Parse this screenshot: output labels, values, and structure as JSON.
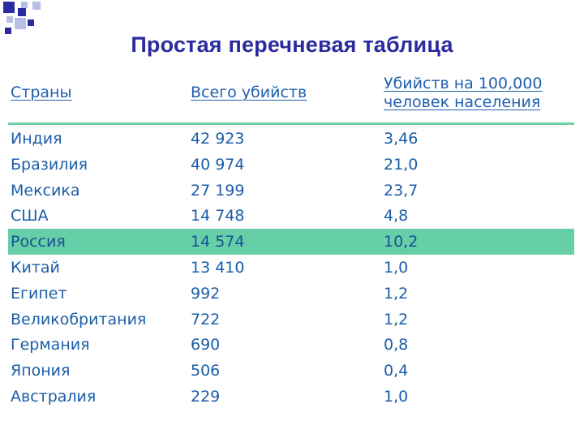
{
  "slide": {
    "title": "Простая перечневая таблица"
  },
  "colors": {
    "title": "#2b2b9e",
    "text": "#1b5da8",
    "highlight": "#66cfa7",
    "rule": "#6fcfa4",
    "deco_dark": "#2b2b9e",
    "deco_light": "#b8bee6"
  },
  "table": {
    "headers": {
      "country": "Страны",
      "total": "Всего убийств",
      "rate_line1": "Убийств на 100,000",
      "rate_line2": "человек населения"
    },
    "highlighted_row": "Россия",
    "rows": [
      {
        "country": "Индия",
        "total": "42 923",
        "rate": "3,46"
      },
      {
        "country": "Бразилия",
        "total": "40 974",
        "rate": "21,0"
      },
      {
        "country": "Мексика",
        "total": "27 199",
        "rate": "23,7"
      },
      {
        "country": "США",
        "total": "14 748",
        "rate": "4,8"
      },
      {
        "country": "Россия",
        "total": "14 574",
        "rate": "10,2"
      },
      {
        "country": "Китай",
        "total": "13 410",
        "rate": "1,0"
      },
      {
        "country": "Египет",
        "total": "992",
        "rate": "1,2"
      },
      {
        "country": "Великобритания",
        "total": "722",
        "rate": "1,2"
      },
      {
        "country": "Германия",
        "total": "690",
        "rate": "0,8"
      },
      {
        "country": "Япония",
        "total": "506",
        "rate": "0,4"
      },
      {
        "country": "Австралия",
        "total": "229",
        "rate": "1,0"
      }
    ]
  }
}
